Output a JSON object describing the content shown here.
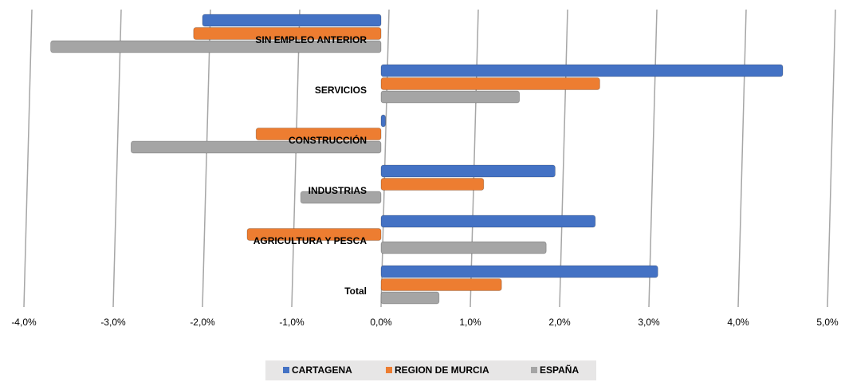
{
  "chart_data": {
    "type": "bar",
    "orientation": "horizontal",
    "categories": [
      "SIN EMPLEO ANTERIOR",
      "SERVICIOS",
      "CONSTRUCCIÓN",
      "INDUSTRIAS",
      "AGRICULTURA Y PESCA",
      "Total"
    ],
    "series": [
      {
        "name": "CARTAGENA",
        "color": "#4472c4",
        "values": [
          -2.0,
          4.5,
          0.05,
          1.95,
          2.4,
          3.1
        ]
      },
      {
        "name": "REGION DE MURCIA",
        "color": "#ed7d31",
        "values": [
          -2.1,
          2.45,
          -1.4,
          1.15,
          -1.5,
          1.35
        ]
      },
      {
        "name": "ESPAÑA",
        "color": "#a5a5a5",
        "values": [
          -3.7,
          1.55,
          -2.8,
          -0.9,
          1.85,
          0.65
        ]
      }
    ],
    "xlim": [
      -4,
      5
    ],
    "xticks": [
      {
        "value": -4,
        "label": "-4,0%"
      },
      {
        "value": -3,
        "label": "-3,0%"
      },
      {
        "value": -2,
        "label": "-2,0%"
      },
      {
        "value": -1,
        "label": "-1,0%"
      },
      {
        "value": 0,
        "label": "0,0%"
      },
      {
        "value": 1,
        "label": "1,0%"
      },
      {
        "value": 2,
        "label": "2,0%"
      },
      {
        "value": 3,
        "label": "3,0%"
      },
      {
        "value": 4,
        "label": "4,0%"
      },
      {
        "value": 5,
        "label": "5,0%"
      }
    ],
    "grid": true,
    "legend": "bottom"
  }
}
